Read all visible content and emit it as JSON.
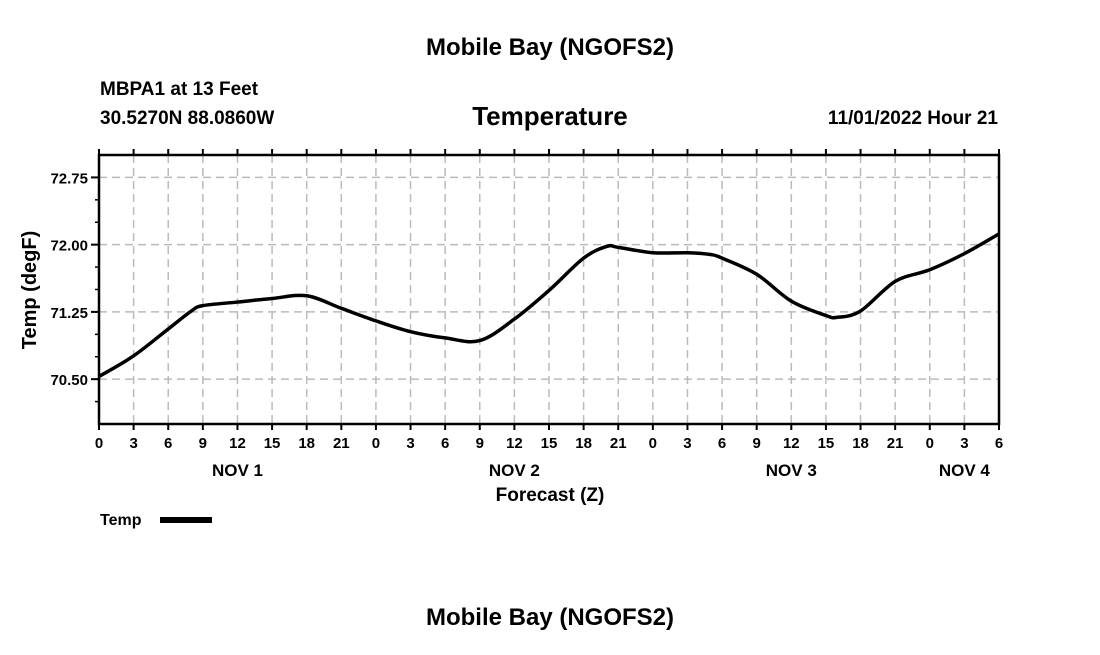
{
  "header": {
    "title": "Mobile Bay (NGOFS2)",
    "station": "MBPA1 at 13 Feet",
    "coords": "30.5270N  88.0860W",
    "variable": "Temperature",
    "datetime": "11/01/2022 Hour 21"
  },
  "footer": {
    "title": "Mobile Bay (NGOFS2)"
  },
  "legend": {
    "label": "Temp"
  },
  "colors": {
    "line": "#000000",
    "grid": "#bbbbbb"
  },
  "chart_data": {
    "type": "line",
    "title": "Temperature",
    "xlabel": "Forecast (Z)",
    "ylabel": "Temp (degF)",
    "xlim": [
      0,
      78
    ],
    "ylim": [
      70.0,
      73.0
    ],
    "grid": true,
    "legend_position": "bottom-left",
    "x_ticks": [
      0,
      3,
      6,
      9,
      12,
      15,
      18,
      21,
      24,
      27,
      30,
      33,
      36,
      39,
      42,
      45,
      48,
      51,
      54,
      57,
      60,
      63,
      66,
      69,
      72,
      75,
      78
    ],
    "x_tick_labels": [
      "0",
      "3",
      "6",
      "9",
      "12",
      "15",
      "18",
      "21",
      "0",
      "3",
      "6",
      "9",
      "12",
      "15",
      "18",
      "21",
      "0",
      "3",
      "6",
      "9",
      "12",
      "15",
      "18",
      "21",
      "0",
      "3",
      "6"
    ],
    "date_labels": [
      {
        "x": 12,
        "label": "NOV 1"
      },
      {
        "x": 36,
        "label": "NOV 2"
      },
      {
        "x": 60,
        "label": "NOV 3"
      },
      {
        "x": 75,
        "label": "NOV 4"
      }
    ],
    "y_ticks": [
      70.5,
      71.25,
      72.0,
      72.75
    ],
    "y_tick_labels": [
      "70.50",
      "71.25",
      "72.00",
      "72.75"
    ],
    "series": [
      {
        "name": "Temp",
        "x": [
          0,
          3,
          6,
          8,
          9,
          12,
          15,
          18,
          21,
          24,
          27,
          30,
          33,
          36,
          39,
          42,
          44,
          45,
          48,
          51,
          53,
          54,
          57,
          60,
          63,
          64,
          66,
          69,
          72,
          75,
          78
        ],
        "values": [
          70.53,
          70.76,
          71.06,
          71.26,
          71.32,
          71.36,
          71.4,
          71.43,
          71.29,
          71.15,
          71.03,
          70.96,
          70.93,
          71.17,
          71.49,
          71.85,
          71.98,
          71.97,
          71.91,
          71.91,
          71.89,
          71.85,
          71.67,
          71.37,
          71.21,
          71.19,
          71.26,
          71.59,
          71.72,
          71.9,
          72.12
        ]
      }
    ]
  }
}
